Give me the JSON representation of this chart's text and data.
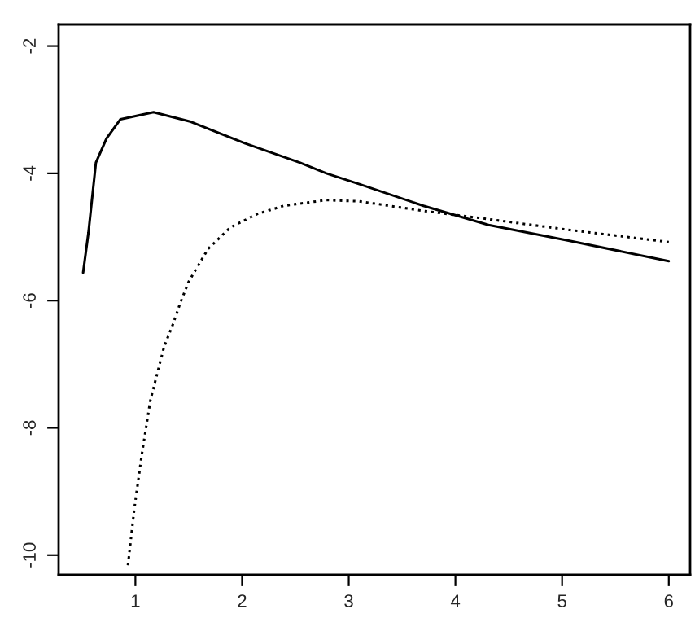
{
  "chart_data": {
    "type": "line",
    "xlim": [
      0.28,
      6.2
    ],
    "ylim": [
      -10.31,
      -1.66
    ],
    "xticks": [
      1,
      2,
      3,
      4,
      5,
      6
    ],
    "yticks": [
      -10,
      -8,
      -6,
      -4,
      -2
    ],
    "grid": false,
    "legend": false,
    "marker": "none",
    "series": [
      {
        "color": "#000000",
        "line_style": "solid",
        "x": [
          0.51,
          0.56,
          0.63,
          0.73,
          0.86,
          1.17,
          1.52,
          2.03,
          2.54,
          2.79,
          3.1,
          3.7,
          4.31,
          5.07,
          6.0
        ],
        "values": [
          -5.56,
          -4.93,
          -3.83,
          -3.45,
          -3.15,
          -3.04,
          -3.19,
          -3.53,
          -3.83,
          -4.0,
          -4.17,
          -4.51,
          -4.81,
          -5.06,
          -5.38
        ]
      },
      {
        "color": "#000000",
        "line_style": "dotted",
        "x": [
          0.93,
          0.99,
          1.06,
          1.14,
          1.27,
          1.35,
          1.42,
          1.5,
          1.68,
          1.89,
          2.14,
          2.39,
          2.79,
          3.1,
          3.7,
          4.31,
          5.07,
          6.0
        ],
        "values": [
          -10.16,
          -9.27,
          -8.42,
          -7.57,
          -6.72,
          -6.38,
          -6.04,
          -5.7,
          -5.19,
          -4.85,
          -4.64,
          -4.51,
          -4.42,
          -4.44,
          -4.59,
          -4.72,
          -4.89,
          -5.08
        ]
      }
    ]
  }
}
